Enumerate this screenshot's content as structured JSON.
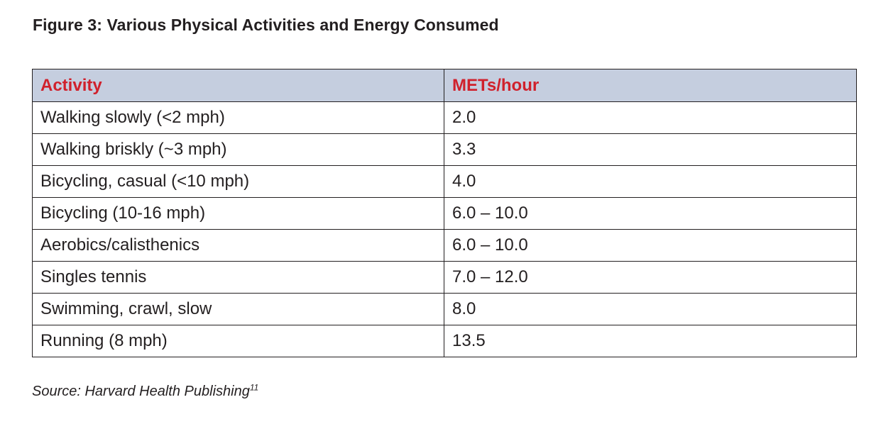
{
  "figure": {
    "title": "Figure 3: Various Physical Activities and Energy Consumed"
  },
  "table": {
    "headers": [
      "Activity",
      "METs/hour"
    ],
    "rows": [
      [
        "Walking slowly (<2 mph)",
        "2.0"
      ],
      [
        "Walking briskly (~3 mph)",
        "3.3"
      ],
      [
        "Bicycling, casual (<10 mph)",
        "4.0"
      ],
      [
        "Bicycling (10-16 mph)",
        "6.0 – 10.0"
      ],
      [
        "Aerobics/calisthenics",
        "6.0 – 10.0"
      ],
      [
        "Singles tennis",
        "7.0 – 12.0"
      ],
      [
        "Swimming, crawl, slow",
        "8.0"
      ],
      [
        "Running (8 mph)",
        "13.5"
      ]
    ]
  },
  "source": {
    "text": "Source: Harvard Health Publishing",
    "reference": "11"
  },
  "colors": {
    "header_background": "#c5cedf",
    "header_text": "#d0212c",
    "body_text": "#231f20",
    "border": "#231f20"
  }
}
